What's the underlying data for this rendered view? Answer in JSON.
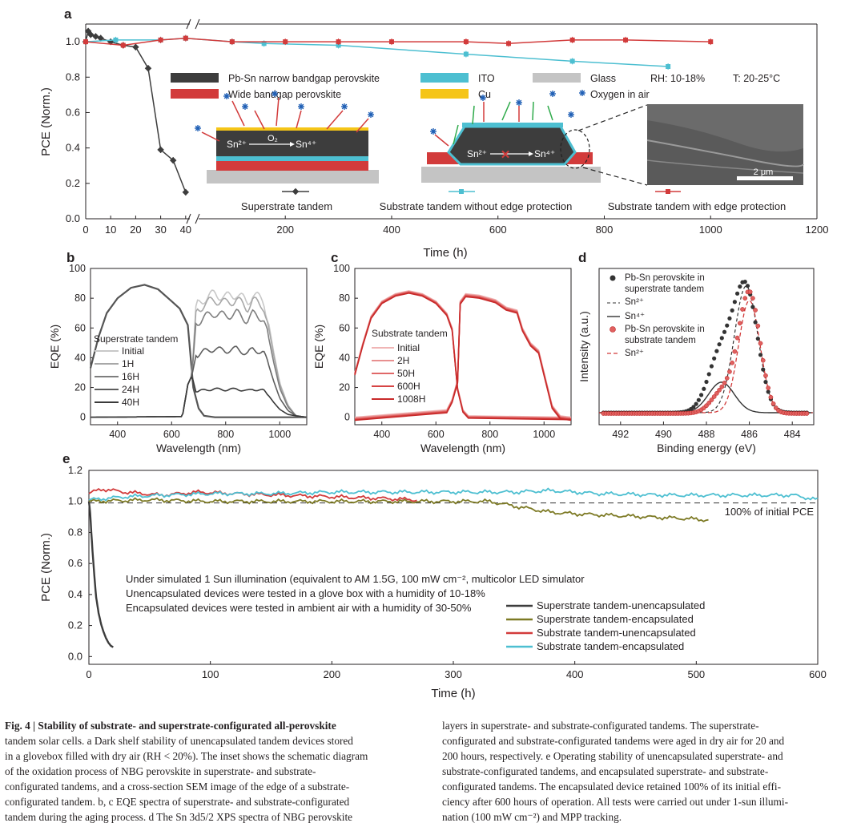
{
  "colors": {
    "black": "#3d3d3d",
    "red": "#d23b3b",
    "cyan": "#4dbfd1",
    "olive": "#7d7a25",
    "gray": "#c4c4c4",
    "yellow": "#f5c518",
    "axis": "#231f20"
  },
  "chart_data": [
    {
      "panel": "a",
      "type": "line",
      "title": "Dark shelf stability",
      "xlabel": "Time (h)",
      "ylabel": "PCE (Norm.)",
      "ylim": [
        0,
        1.1
      ],
      "yticks": [
        "0.0",
        "0.2",
        "0.4",
        "0.6",
        "0.8",
        "1.0"
      ],
      "xticks_left": [
        "0",
        "10",
        "20",
        "30",
        "40"
      ],
      "xticks_right": [
        "200",
        "400",
        "600",
        "800",
        "1000",
        "1200"
      ],
      "series": [
        {
          "name": "Superstrate tandem",
          "color": "black",
          "x": [
            0,
            1,
            2,
            4,
            6,
            10,
            15,
            20,
            25,
            30,
            35,
            40
          ],
          "y": [
            1.0,
            1.06,
            1.04,
            1.03,
            1.02,
            1.0,
            0.98,
            0.97,
            0.85,
            0.39,
            0.33,
            0.15
          ]
        },
        {
          "name": "Substrate tandem without edge protection",
          "color": "cyan",
          "x": [
            0,
            12,
            30,
            40,
            100,
            160,
            300,
            540,
            740,
            920
          ],
          "y": [
            1.0,
            1.01,
            1.01,
            1.02,
            1.0,
            0.99,
            0.98,
            0.93,
            0.89,
            0.86
          ]
        },
        {
          "name": "Substrate tandem with edge protection",
          "color": "red",
          "x": [
            0,
            15,
            30,
            40,
            100,
            200,
            300,
            400,
            540,
            620,
            740,
            840,
            1000
          ],
          "y": [
            1.0,
            0.98,
            1.01,
            1.02,
            1.0,
            1.0,
            1.0,
            1.0,
            1.0,
            0.99,
            1.01,
            1.01,
            1.0
          ]
        }
      ],
      "legend": {
        "narrow": "Pb-Sn narrow bandgap perovskite",
        "wide": "Wide bandgap perovskite",
        "ito": "ITO",
        "cu": "Cu",
        "glass": "Glass",
        "oxygen": "Oxygen in air",
        "rh": "RH: 10-18%",
        "temp": "T: 20-25°C"
      },
      "inset": {
        "reaction": "Sn²⁺ ⟶ Sn⁴⁺",
        "left_sn2": "Sn²⁺",
        "left_sn4": "Sn⁴⁺",
        "o2": "O₂",
        "right_sn2": "Sn²⁺",
        "right_sn4": "Sn⁴⁺",
        "cross": "✕",
        "scalebar": "2 μm"
      },
      "labels": [
        "Superstrate tandem",
        "Substrate tandem without edge protection",
        "Substrate tandem with edge protection"
      ]
    },
    {
      "panel": "b",
      "type": "line",
      "xlabel": "Wavelength (nm)",
      "ylabel": "EQE (%)",
      "xlim": [
        300,
        1100
      ],
      "ylim": [
        -5,
        100
      ],
      "xticks": [
        "400",
        "600",
        "800",
        "1000"
      ],
      "yticks": [
        "0",
        "20",
        "40",
        "60",
        "80",
        "100"
      ],
      "legend_title": "Superstrate tandem",
      "series": [
        {
          "name": "Initial",
          "color": "#c8c8c8",
          "nbg_level": 83
        },
        {
          "name": "1H",
          "color": "#a8a8a8",
          "nbg_level": 79
        },
        {
          "name": "16H",
          "color": "#7e7e7e",
          "nbg_level": 70
        },
        {
          "name": "24H",
          "color": "#5e5e5e",
          "nbg_level": 46
        },
        {
          "name": "40H",
          "color": "#3a3a3a",
          "nbg_level": 19
        }
      ]
    },
    {
      "panel": "c",
      "type": "line",
      "xlabel": "Wavelength (nm)",
      "ylabel": "EQE (%)",
      "xlim": [
        300,
        1100
      ],
      "ylim": [
        -5,
        100
      ],
      "xticks": [
        "400",
        "600",
        "800",
        "1000"
      ],
      "yticks": [
        "0",
        "20",
        "40",
        "60",
        "80",
        "100"
      ],
      "legend_title": "Substrate tandem",
      "series": [
        {
          "name": "Initial",
          "color": "#f0b5b5"
        },
        {
          "name": "2H",
          "color": "#e89090"
        },
        {
          "name": "50H",
          "color": "#e06868"
        },
        {
          "name": "600H",
          "color": "#d64444"
        },
        {
          "name": "1008H",
          "color": "#c82a2a"
        }
      ]
    },
    {
      "panel": "d",
      "type": "scatter",
      "xlabel": "Binding energy (eV)",
      "ylabel": "Intensity (a.u.)",
      "xlim": [
        493,
        483
      ],
      "xticks": [
        "492",
        "490",
        "488",
        "486",
        "484"
      ],
      "legend": [
        "Pb-Sn perovskite in superstrate tandem",
        "Sn²⁺",
        "Sn⁴⁺",
        "Pb-Sn perovskite in substrate tandem",
        "Sn²⁺"
      ],
      "legend_lines": [
        "Pb-Sn perovskite in",
        "superstrate tandem",
        "Sn²⁺",
        "Sn⁴⁺",
        "Pb-Sn perovskite in",
        "substrate tandem",
        "Sn²⁺"
      ]
    },
    {
      "panel": "e",
      "type": "line",
      "xlabel": "Time (h)",
      "ylabel": "PCE (Norm.)",
      "xlim": [
        0,
        600
      ],
      "ylim": [
        -0.05,
        1.2
      ],
      "xticks": [
        "0",
        "100",
        "200",
        "300",
        "400",
        "500",
        "600"
      ],
      "yticks": [
        "0.0",
        "0.2",
        "0.4",
        "0.6",
        "0.8",
        "1.0",
        "1.2"
      ],
      "reference": {
        "y": 0.99,
        "label": "100% of initial PCE"
      },
      "notes": [
        "Under simulated 1 Sun illumination (equivalent to AM 1.5G, 100 mW cm⁻², multicolor LED simulator",
        "Unencapsulated devices were tested in a glove box with a humidity of 10-18%",
        "Encapsulated devices were tested in ambient air with a humidity of 30-50%"
      ],
      "series": [
        {
          "name": "Superstrate tandem-unencapsulated",
          "color": "black",
          "x": [
            0,
            1,
            2,
            3,
            4,
            5,
            6,
            8,
            10,
            12,
            14,
            16,
            18,
            20
          ],
          "y": [
            1.0,
            0.93,
            0.8,
            0.68,
            0.57,
            0.47,
            0.38,
            0.28,
            0.21,
            0.16,
            0.12,
            0.09,
            0.07,
            0.06
          ]
        },
        {
          "name": "Superstrate tandem-encapsulated",
          "color": "olive",
          "x": [
            0,
            50,
            100,
            150,
            200,
            250,
            300,
            330,
            350,
            380,
            400,
            430,
            460,
            490,
            510
          ],
          "y": [
            1.0,
            1.01,
            1.0,
            1.0,
            1.0,
            1.0,
            1.0,
            1.0,
            0.97,
            0.93,
            0.92,
            0.91,
            0.9,
            0.89,
            0.88
          ]
        },
        {
          "name": "Substrate tandem-unencapsulated",
          "color": "red",
          "x": [
            0,
            10,
            30,
            60,
            90,
            120,
            160,
            200,
            240,
            270
          ],
          "y": [
            1.05,
            1.08,
            1.06,
            1.04,
            1.06,
            1.05,
            1.04,
            1.03,
            1.02,
            1.01
          ]
        },
        {
          "name": "Substrate tandem-encapsulated",
          "color": "cyan",
          "x": [
            0,
            30,
            60,
            100,
            150,
            200,
            260,
            320,
            350,
            380,
            420,
            480,
            540,
            580,
            600
          ],
          "y": [
            1.01,
            1.03,
            1.04,
            1.05,
            1.05,
            1.06,
            1.06,
            1.06,
            1.06,
            1.07,
            1.05,
            1.04,
            1.04,
            1.04,
            1.01
          ]
        }
      ]
    }
  ],
  "caption": {
    "title": "Fig. 4 | Stability of substrate- and superstrate-configurated all-perovskite tandem solar cells.",
    "left_lines": [
      "Fig. 4 | Stability of substrate- and superstrate-configurated all-perovskite",
      "tandem solar cells. a Dark shelf stability of unencapsulated tandem devices stored",
      "in a glovebox filled with dry air (RH < 20%). The inset shows the schematic diagram",
      "of the oxidation process of NBG perovskite in superstrate- and substrate-",
      "configurated tandems, and a cross-section SEM image of the edge of a substrate-",
      "configurated tandem. b, c EQE spectra of superstrate- and substrate-configurated",
      "tandem during the aging process. d The Sn 3d5/2 XPS spectra of NBG perovskite"
    ],
    "right_lines": [
      "layers in superstrate- and substrate-configurated tandems. The superstrate-",
      "configurated and substrate-configurated tandems were aged in dry air for 20 and",
      "200 hours, respectively. e Operating stability of unencapsulated superstrate- and",
      "substrate-configurated tandems, and encapsulated superstrate- and substrate-",
      "configurated tandems. The encapsulated device retained 100% of its initial effi-",
      "ciency after 600 hours of operation. All tests were carried out under 1-sun illumi-",
      "nation (100 mW cm⁻²) and MPP tracking."
    ]
  }
}
